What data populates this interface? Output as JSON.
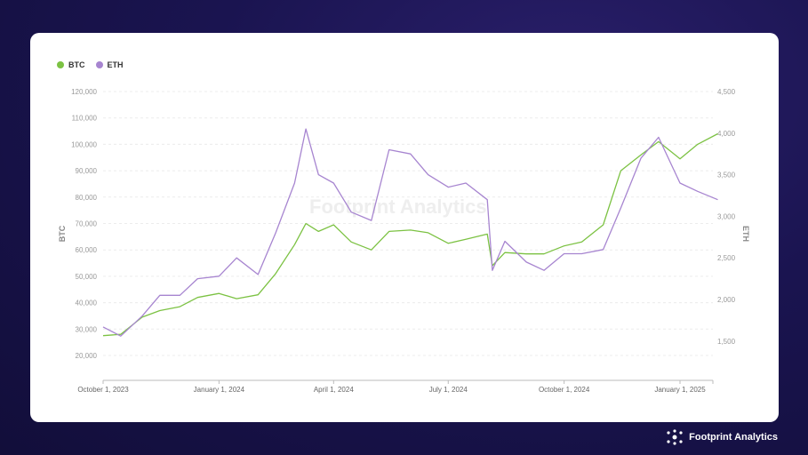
{
  "legend": [
    {
      "label": "BTC",
      "color": "#7cc243"
    },
    {
      "label": "ETH",
      "color": "#a785d0"
    }
  ],
  "brand": {
    "name": "Footprint Analytics",
    "icon": "footprint-logo-icon"
  },
  "watermark": "Footprint Analytics",
  "chart_data": {
    "type": "line",
    "ylabel": "BTC",
    "y2label": "ETH",
    "ylim": [
      15000,
      120000
    ],
    "y2lim": [
      1000,
      4500
    ],
    "yticks": [
      "120,000",
      "110,000",
      "100,000",
      "90,000",
      "80,000",
      "70,000",
      "60,000",
      "50,000",
      "40,000",
      "30,000",
      "20,000"
    ],
    "y2ticks": [
      "4,500",
      "4,000",
      "3,500",
      "3,000",
      "2,500",
      "2,000",
      "1,500"
    ],
    "xticks": [
      "October 1, 2023",
      "January 1, 2024",
      "April 1, 2024",
      "July 1, 2024",
      "October 1, 2024",
      "January 1, 2025"
    ],
    "x": [
      "2023-10-01",
      "2023-10-15",
      "2023-11-01",
      "2023-11-15",
      "2023-12-01",
      "2023-12-15",
      "2024-01-01",
      "2024-01-15",
      "2024-02-01",
      "2024-02-15",
      "2024-03-01",
      "2024-03-10",
      "2024-03-20",
      "2024-04-01",
      "2024-04-15",
      "2024-05-01",
      "2024-05-15",
      "2024-06-01",
      "2024-06-15",
      "2024-07-01",
      "2024-07-15",
      "2024-08-01",
      "2024-08-05",
      "2024-08-15",
      "2024-09-01",
      "2024-09-15",
      "2024-10-01",
      "2024-10-15",
      "2024-11-01",
      "2024-11-15",
      "2024-12-01",
      "2024-12-15",
      "2025-01-01",
      "2025-01-15",
      "2025-01-31"
    ],
    "series": [
      {
        "name": "BTC",
        "axis": "left",
        "color": "#7cc243",
        "values": [
          27500,
          28000,
          34500,
          37000,
          38500,
          42000,
          43500,
          41500,
          43000,
          51000,
          62000,
          70000,
          67000,
          69500,
          63000,
          60000,
          67000,
          67500,
          66500,
          62500,
          64000,
          66000,
          54000,
          59000,
          58500,
          58500,
          61500,
          63000,
          69500,
          90000,
          96000,
          101000,
          94500,
          100000,
          104000
        ]
      },
      {
        "name": "ETH",
        "axis": "right",
        "color": "#a785d0",
        "values": [
          1670,
          1560,
          1800,
          2050,
          2050,
          2250,
          2280,
          2500,
          2300,
          2800,
          3400,
          4050,
          3500,
          3400,
          3050,
          2950,
          3800,
          3750,
          3500,
          3350,
          3400,
          3200,
          2350,
          2700,
          2450,
          2350,
          2550,
          2550,
          2600,
          3100,
          3700,
          3950,
          3400,
          3300,
          3200
        ]
      }
    ]
  }
}
